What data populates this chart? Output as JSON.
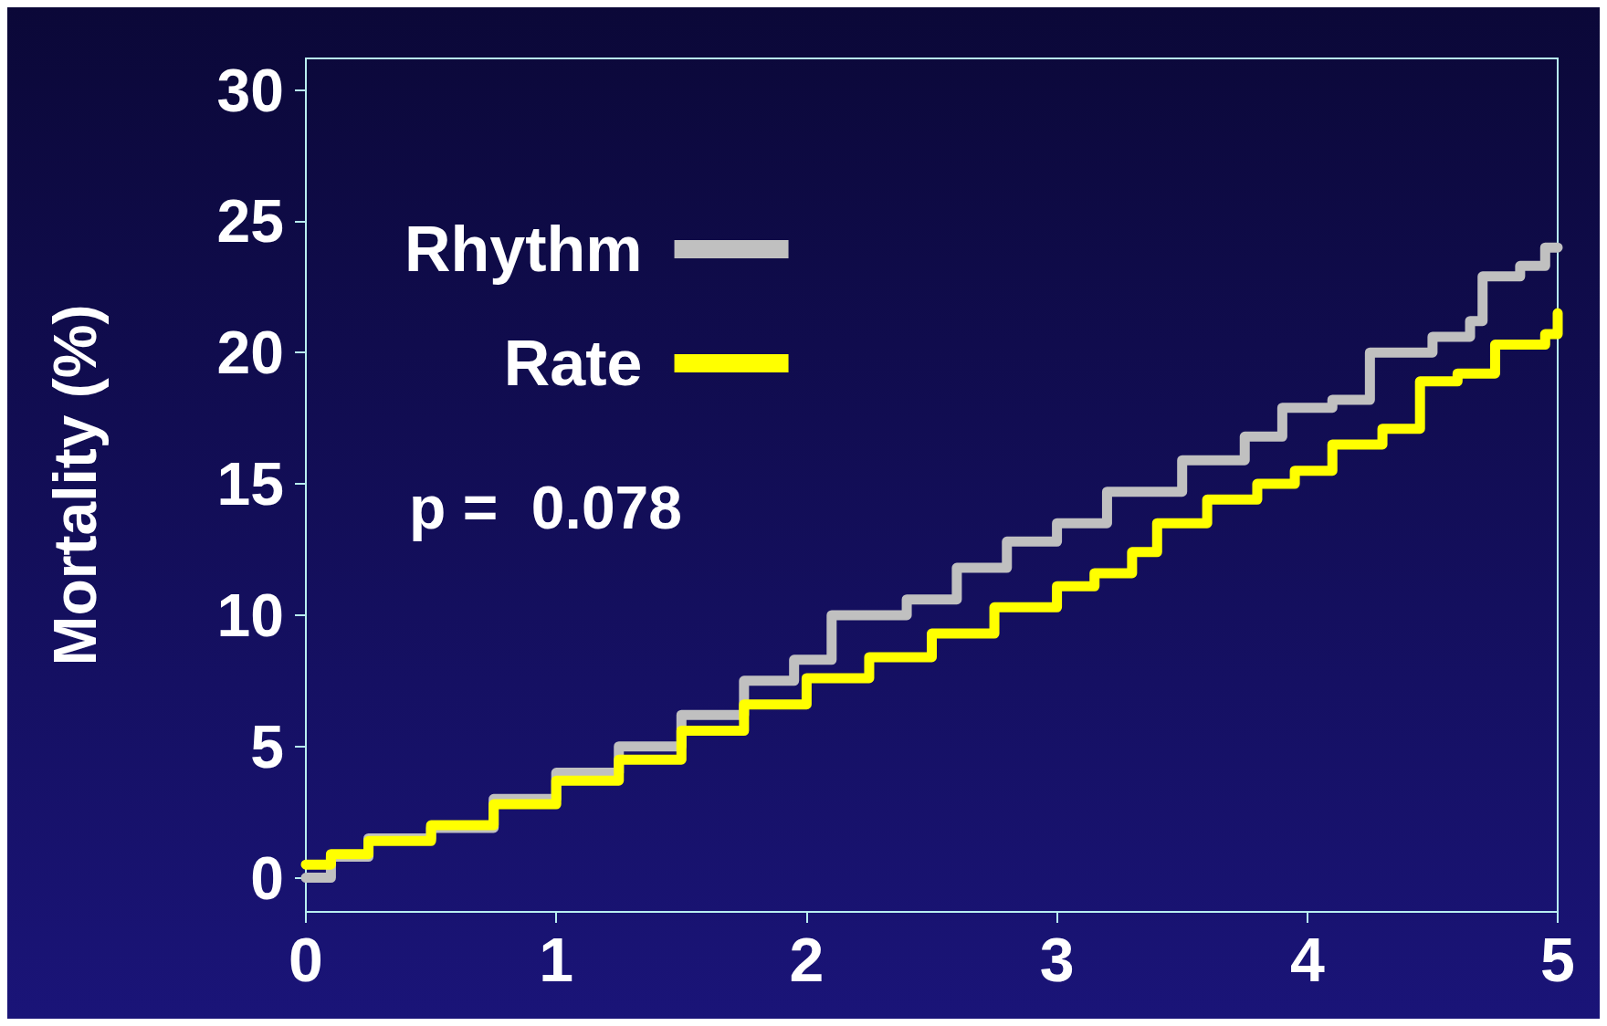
{
  "chart_data": {
    "type": "step",
    "ylabel": "Mortality (%)",
    "xlim": [
      0,
      5
    ],
    "ylim": [
      -1.3,
      31.2
    ],
    "xticks": [
      0,
      1,
      2,
      3,
      4,
      5
    ],
    "yticks": [
      0,
      5,
      10,
      15,
      20,
      25,
      30
    ],
    "grid": false,
    "legend": "top left",
    "marker": "none",
    "line_style": "solid",
    "annotations": [
      "p =  0.078"
    ],
    "series": [
      {
        "name": "Rhythm",
        "color": "#c0c0c0",
        "x": [
          0,
          0.1,
          0.25,
          0.5,
          0.75,
          1.0,
          1.25,
          1.5,
          1.75,
          1.95,
          2.1,
          2.4,
          2.6,
          2.8,
          3.0,
          3.2,
          3.5,
          3.75,
          3.9,
          4.1,
          4.25,
          4.5,
          4.65,
          4.7,
          4.85,
          4.95,
          5.0
        ],
        "values": [
          0,
          0.8,
          1.5,
          1.9,
          3.0,
          4.0,
          5.0,
          6.2,
          7.5,
          8.3,
          10.0,
          10.6,
          11.8,
          12.8,
          13.5,
          14.7,
          15.9,
          16.8,
          17.9,
          18.2,
          20.0,
          20.6,
          21.2,
          22.9,
          23.3,
          24.0,
          24.0
        ]
      },
      {
        "name": "Rate",
        "color": "#ffff00",
        "x": [
          0,
          0.1,
          0.25,
          0.5,
          0.75,
          1.0,
          1.25,
          1.5,
          1.75,
          2.0,
          2.25,
          2.5,
          2.75,
          3.0,
          3.15,
          3.3,
          3.4,
          3.6,
          3.8,
          3.95,
          4.1,
          4.3,
          4.45,
          4.6,
          4.75,
          4.95,
          5.0
        ],
        "values": [
          0.5,
          0.9,
          1.4,
          2.0,
          2.8,
          3.7,
          4.5,
          5.6,
          6.6,
          7.6,
          8.4,
          9.3,
          10.3,
          11.1,
          11.6,
          12.4,
          13.5,
          14.4,
          15.0,
          15.5,
          16.5,
          17.1,
          18.9,
          19.2,
          20.3,
          20.7,
          21.5
        ]
      }
    ]
  }
}
